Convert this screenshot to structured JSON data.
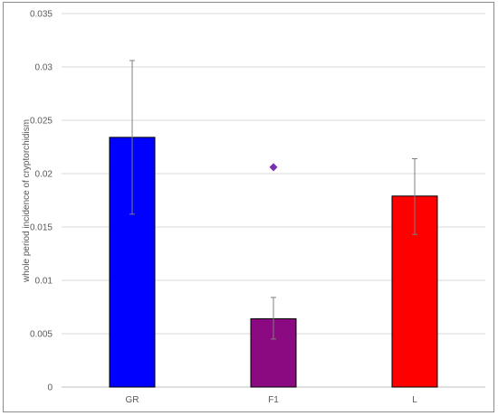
{
  "chart_data": {
    "type": "bar",
    "title": "",
    "xlabel": "",
    "ylabel": "whole period incidence of cryptorchidism",
    "categories": [
      "GR",
      "F1",
      "L"
    ],
    "values": [
      0.0234,
      0.0064,
      0.0179
    ],
    "error_bars": {
      "low": [
        0.0162,
        0.0045,
        0.0143
      ],
      "high": [
        0.0306,
        0.0084,
        0.0214
      ]
    },
    "bar_colors": [
      "#0000ff",
      "#8b0a82",
      "#ff0000"
    ],
    "extra_points": [
      {
        "category": "F1",
        "value": 0.0206,
        "marker": "diamond",
        "color": "#7a2fb0"
      }
    ],
    "ylim": [
      0,
      0.035
    ],
    "y_ticks": [
      "0",
      "0.005",
      "0.01",
      "0.015",
      "0.02",
      "0.025",
      "0.03",
      "0.035"
    ],
    "y_tick_values": [
      0,
      0.005,
      0.01,
      0.015,
      0.02,
      0.025,
      0.03,
      0.035
    ],
    "grid": true,
    "legend": "none"
  }
}
